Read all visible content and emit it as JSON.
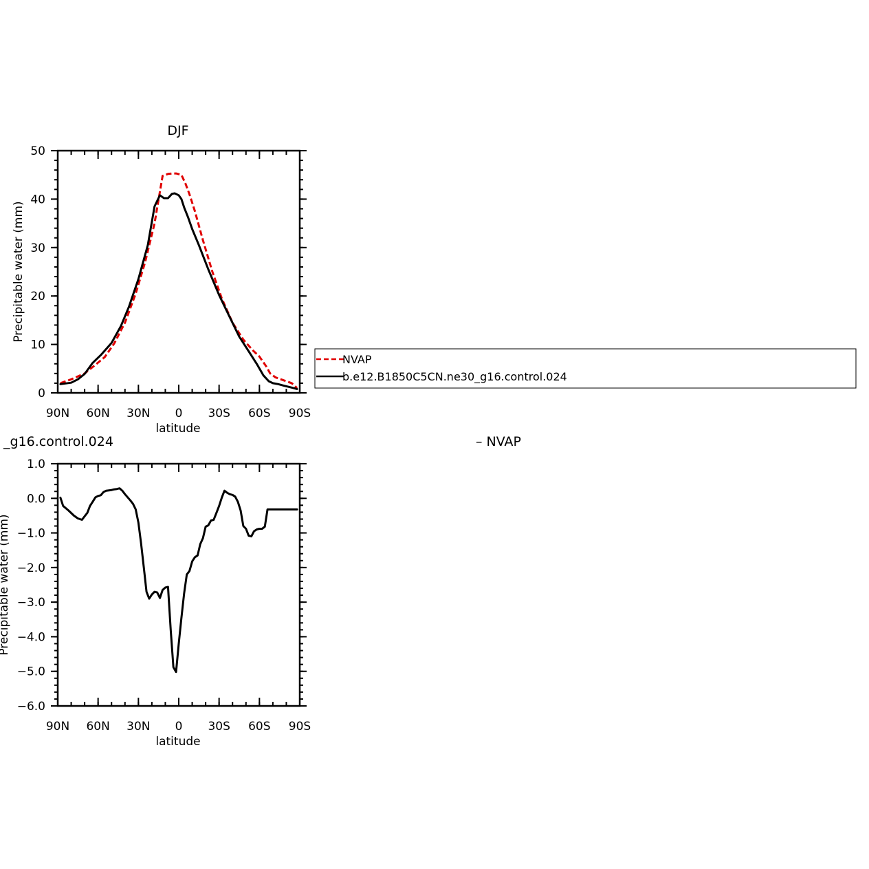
{
  "colors": {
    "nvap": "#e00000",
    "model": "#000000",
    "axes": "#000000",
    "background": "#ffffff"
  },
  "chart_data": [
    {
      "type": "line",
      "title": "DJF",
      "xlabel": "latitude",
      "ylabel": "Precipitable water (mm)",
      "xlim": [
        90,
        -90
      ],
      "ylim": [
        0,
        50
      ],
      "x_ticks": [
        90,
        60,
        30,
        0,
        -30,
        -60,
        -90
      ],
      "x_tick_labels": [
        "90N",
        "60N",
        "30N",
        "0",
        "30S",
        "60S",
        "90S"
      ],
      "y_ticks": [
        0,
        10,
        20,
        30,
        40,
        50
      ],
      "y_tick_labels": [
        "0",
        "10",
        "20",
        "30",
        "40",
        "50"
      ],
      "legend_placement": "right",
      "legend": [
        "NVAP",
        "b.e12.B1850C5CN.ne30_g16.control.024"
      ],
      "series": [
        {
          "name": "NVAP",
          "color": "#e00000",
          "style": "dashed",
          "x": [
            88,
            80,
            70,
            62,
            55,
            48,
            40,
            32,
            25,
            18,
            12,
            8,
            5,
            2,
            -2,
            -5,
            -8,
            -12,
            -18,
            -25,
            -32,
            -40,
            -48,
            -55,
            -60,
            -65,
            -68,
            -72,
            -78,
            -84,
            -88
          ],
          "y": [
            2.0,
            2.8,
            4.0,
            5.8,
            7.4,
            10.2,
            14.5,
            20.5,
            27.0,
            35.0,
            44.8,
            45.2,
            45.3,
            45.3,
            45.0,
            43.2,
            41.0,
            37.5,
            31.5,
            25.0,
            19.5,
            14.5,
            11.0,
            8.8,
            7.5,
            5.5,
            4.0,
            3.2,
            2.6,
            2.0,
            1.0
          ]
        },
        {
          "name": "b.e12.B1850C5CN.ne30_g16.control.024",
          "color": "#000000",
          "style": "solid",
          "x": [
            88,
            80,
            75,
            70,
            64,
            58,
            50,
            43,
            37,
            30,
            23,
            18,
            14,
            11,
            8,
            5,
            3,
            0,
            -2,
            -4,
            -7,
            -10,
            -15,
            -22,
            -30,
            -38,
            -45,
            -52,
            -58,
            -63,
            -67,
            -70,
            -74,
            -78,
            -84,
            -88
          ],
          "y": [
            1.8,
            2.1,
            2.8,
            3.9,
            6.2,
            7.8,
            10.3,
            13.8,
            17.8,
            23.5,
            30.5,
            38.5,
            40.8,
            40.2,
            40.2,
            41.1,
            41.2,
            40.8,
            40.0,
            38.3,
            36.2,
            33.8,
            30.5,
            25.5,
            20.2,
            15.6,
            11.6,
            8.6,
            6.0,
            3.6,
            2.4,
            2.0,
            1.8,
            1.5,
            1.1,
            0.8
          ]
        }
      ]
    },
    {
      "type": "line",
      "title": "_g16.control.024",
      "subtitle": "– NVAP",
      "xlabel": "latitude",
      "ylabel": "Precipitable water (mm)",
      "xlim": [
        90,
        -90
      ],
      "ylim": [
        -6,
        1
      ],
      "x_ticks": [
        90,
        60,
        30,
        0,
        -30,
        -60,
        -90
      ],
      "x_tick_labels": [
        "90N",
        "60N",
        "30N",
        "0",
        "30S",
        "60S",
        "90S"
      ],
      "y_ticks": [
        1,
        0,
        -1,
        -2,
        -3,
        -4,
        -5,
        -6
      ],
      "y_tick_labels": [
        "1.0",
        "0.0",
        "−1.0",
        "−2.0",
        "−3.0",
        "−4.0",
        "−5.0",
        "−6.0"
      ],
      "series": [
        {
          "color": "#000000",
          "style": "solid",
          "x": [
            88,
            86,
            82,
            78,
            75,
            72,
            70,
            68,
            66,
            64,
            62,
            60,
            58,
            56,
            54,
            52,
            50,
            48,
            46,
            44,
            42,
            40,
            38,
            36,
            34,
            32,
            30,
            28,
            26,
            24,
            22,
            20,
            18,
            16,
            14,
            12,
            10,
            8,
            6,
            4,
            2,
            0,
            -2,
            -4,
            -6,
            -8,
            -10,
            -12,
            -14,
            -16,
            -18,
            -20,
            -22,
            -24,
            -26,
            -28,
            -30,
            -32,
            -34,
            -36,
            -38,
            -40,
            -42,
            -44,
            -46,
            -48,
            -50,
            -52,
            -54,
            -56,
            -58,
            -60,
            -62,
            -64,
            -66,
            -68,
            -70,
            -72,
            -74,
            -76,
            -78,
            -80,
            -82,
            -84,
            -86,
            -88
          ],
          "y": [
            0.02,
            -0.22,
            -0.35,
            -0.5,
            -0.58,
            -0.62,
            -0.52,
            -0.42,
            -0.22,
            -0.1,
            0.03,
            0.07,
            0.09,
            0.18,
            0.22,
            0.23,
            0.24,
            0.26,
            0.27,
            0.29,
            0.22,
            0.12,
            0.03,
            -0.06,
            -0.16,
            -0.32,
            -0.7,
            -1.3,
            -2.0,
            -2.7,
            -2.9,
            -2.78,
            -2.7,
            -2.72,
            -2.88,
            -2.65,
            -2.58,
            -2.56,
            -3.8,
            -4.88,
            -5.02,
            -4.2,
            -3.45,
            -2.75,
            -2.2,
            -2.1,
            -1.82,
            -1.7,
            -1.65,
            -1.32,
            -1.15,
            -0.82,
            -0.78,
            -0.64,
            -0.62,
            -0.42,
            -0.22,
            0.02,
            0.22,
            0.16,
            0.12,
            0.1,
            0.05,
            -0.1,
            -0.35,
            -0.8,
            -0.88,
            -1.08,
            -1.1,
            -0.95,
            -0.9,
            -0.88,
            -0.88,
            -0.82,
            -0.32,
            -0.32,
            -0.32,
            -0.32,
            -0.32,
            -0.32,
            -0.32,
            -0.32,
            -0.32,
            -0.32,
            -0.32,
            -0.32
          ]
        }
      ]
    }
  ]
}
